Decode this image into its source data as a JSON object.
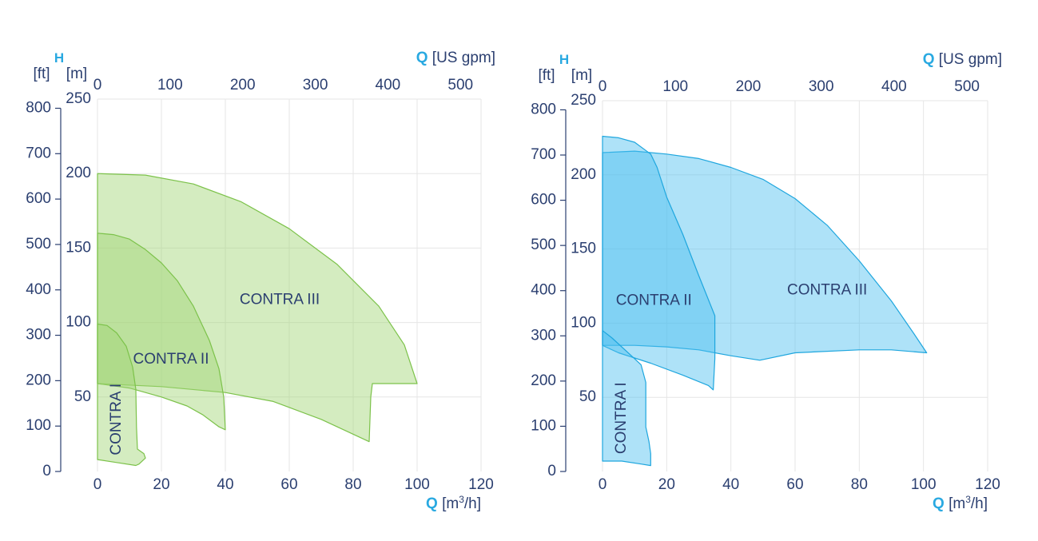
{
  "colors": {
    "text": "#2b3f70",
    "accent": "#29a9e1",
    "green_fill": "#9fd574",
    "green_stroke": "#7cc24a",
    "blue_fill": "#4cbfef",
    "blue_stroke": "#1ea6de",
    "grid": "#e6e6e6"
  },
  "chart_data": [
    {
      "type": "area",
      "color_theme": "green",
      "h_letter": "H",
      "q_letter": "Q",
      "top_unit": "[US gpm]",
      "bottom_unit_pre": "[m",
      "bottom_unit_sup": "3",
      "bottom_unit_post": "/h]",
      "ft_label": "[ft]",
      "m_label": "[m]",
      "x_range": [
        0,
        120
      ],
      "x_ticks": [
        0,
        20,
        40,
        60,
        80,
        100,
        120
      ],
      "top_range": [
        0,
        550
      ],
      "top_ticks": [
        0,
        100,
        200,
        300,
        400,
        500
      ],
      "y_range": [
        0,
        250
      ],
      "m_ticks": [
        50,
        100,
        150,
        200,
        250
      ],
      "ft_ticks": [
        0,
        100,
        200,
        300,
        400,
        500,
        600,
        700,
        800
      ],
      "grid": true,
      "regions": [
        {
          "name": "CONTRA III",
          "label_at": [
            57,
            115
          ],
          "label_rotate": 0,
          "points": [
            [
              0,
              200
            ],
            [
              15,
              199
            ],
            [
              30,
              193
            ],
            [
              45,
              181
            ],
            [
              60,
              163
            ],
            [
              75,
              139
            ],
            [
              88,
              111
            ],
            [
              96,
              85
            ],
            [
              100,
              59
            ],
            [
              86,
              59
            ],
            [
              85.5,
              50
            ],
            [
              85,
              20
            ],
            [
              70,
              35
            ],
            [
              55,
              47
            ],
            [
              40,
              53
            ],
            [
              20,
              57
            ],
            [
              0,
              59
            ]
          ]
        },
        {
          "name": "CONTRA II",
          "label_at": [
            23,
            75
          ],
          "label_rotate": 0,
          "points": [
            [
              0,
              160
            ],
            [
              5,
              159
            ],
            [
              10,
              156
            ],
            [
              15,
              149
            ],
            [
              20,
              140
            ],
            [
              25,
              128
            ],
            [
              30,
              111
            ],
            [
              35,
              88
            ],
            [
              38,
              69
            ],
            [
              39.5,
              50
            ],
            [
              40,
              28
            ],
            [
              38,
              30
            ],
            [
              33,
              38
            ],
            [
              28,
              44
            ],
            [
              20,
              50
            ],
            [
              10,
              56
            ],
            [
              0,
              59
            ]
          ]
        },
        {
          "name": "CONTRA I",
          "label_at": [
            6,
            35
          ],
          "label_rotate": -90,
          "points": [
            [
              0,
              99
            ],
            [
              3,
              98
            ],
            [
              6,
              93
            ],
            [
              9,
              84
            ],
            [
              11,
              70
            ],
            [
              12,
              55
            ],
            [
              12.2,
              30
            ],
            [
              12.5,
              15
            ],
            [
              14.5,
              12
            ],
            [
              15,
              9
            ],
            [
              13,
              5
            ],
            [
              12,
              4
            ],
            [
              6,
              6
            ],
            [
              0,
              8
            ]
          ]
        }
      ]
    },
    {
      "type": "area",
      "color_theme": "blue",
      "h_letter": "H",
      "q_letter": "Q",
      "top_unit": "[US gpm]",
      "bottom_unit_pre": "[m",
      "bottom_unit_sup": "3",
      "bottom_unit_post": "/h]",
      "ft_label": "[ft]",
      "m_label": "[m]",
      "x_range": [
        0,
        120
      ],
      "x_ticks": [
        0,
        20,
        40,
        60,
        80,
        100,
        120
      ],
      "top_range": [
        0,
        550
      ],
      "top_ticks": [
        0,
        100,
        200,
        300,
        400,
        500
      ],
      "y_range": [
        0,
        250
      ],
      "m_ticks": [
        50,
        100,
        150,
        200,
        250
      ],
      "ft_ticks": [
        0,
        100,
        200,
        300,
        400,
        500,
        600,
        700,
        800
      ],
      "grid": true,
      "regions": [
        {
          "name": "CONTRA III",
          "label_at": [
            70,
            122
          ],
          "label_rotate": 0,
          "points": [
            [
              0,
              215
            ],
            [
              10,
              216
            ],
            [
              20,
              214
            ],
            [
              30,
              211
            ],
            [
              40,
              205
            ],
            [
              50,
              197
            ],
            [
              60,
              184
            ],
            [
              70,
              166
            ],
            [
              80,
              142
            ],
            [
              90,
              115
            ],
            [
              97,
              93
            ],
            [
              101,
              80
            ],
            [
              90,
              82
            ],
            [
              80,
              82
            ],
            [
              60,
              80
            ],
            [
              49,
              75
            ],
            [
              40,
              78
            ],
            [
              30,
              82
            ],
            [
              20,
              84
            ],
            [
              10,
              85
            ],
            [
              0,
              85
            ]
          ]
        },
        {
          "name": "CONTRA II",
          "label_at": [
            16,
            115
          ],
          "label_rotate": 0,
          "points": [
            [
              0,
              226
            ],
            [
              5,
              225
            ],
            [
              10,
              222
            ],
            [
              15,
              214
            ],
            [
              17,
              205
            ],
            [
              20,
              185
            ],
            [
              25,
              160
            ],
            [
              30,
              132
            ],
            [
              35,
              105
            ],
            [
              35,
              76
            ],
            [
              34.5,
              55
            ],
            [
              33,
              58
            ],
            [
              25,
              65
            ],
            [
              15,
              73
            ],
            [
              5,
              80
            ],
            [
              0,
              85
            ]
          ]
        },
        {
          "name": "CONTRA I",
          "label_at": [
            6,
            36
          ],
          "label_rotate": -90,
          "points": [
            [
              0,
              95
            ],
            [
              3,
              90
            ],
            [
              7,
              82
            ],
            [
              10,
              76
            ],
            [
              12,
              72
            ],
            [
              13.5,
              60
            ],
            [
              13.5,
              30
            ],
            [
              14.5,
              20
            ],
            [
              15,
              12
            ],
            [
              15,
              4
            ],
            [
              12,
              5
            ],
            [
              6,
              7
            ],
            [
              0,
              7
            ]
          ]
        }
      ]
    }
  ]
}
